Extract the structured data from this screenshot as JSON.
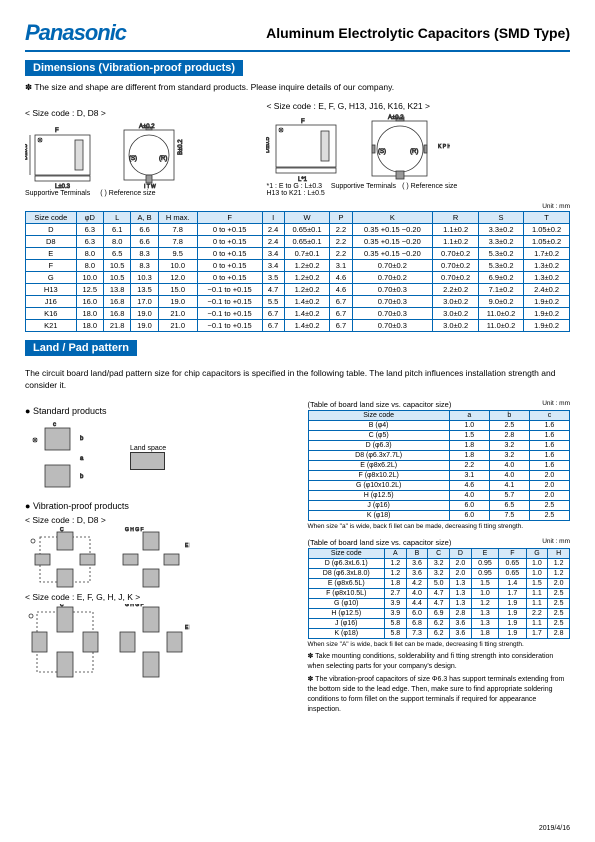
{
  "header": {
    "logo": "Panasonic",
    "title": "Aluminum Electrolytic Capacitors (SMD Type)"
  },
  "section1": {
    "title": "Dimensions (Vibration-proof products)",
    "note": "✽ The size and shape are different from standard products. Please inquire details of our company.",
    "diag_left_label": "< Size code : D, D8 >",
    "diag_right_label": "< Size code : E, F, G, H13, J16, K16, K21 >",
    "support_terminals": "Supportive Terminals",
    "ref_size": "( ) Reference size",
    "star1": "*1 : E to G : L±0.3\nH13 to K21 : L±0.5",
    "unit": "Unit : mm",
    "table": {
      "headers": [
        "Size code",
        "φD",
        "L",
        "A, B",
        "H max.",
        "F",
        "I",
        "W",
        "P",
        "K",
        "R",
        "S",
        "T"
      ],
      "rows": [
        [
          "D",
          "6.3",
          "6.1",
          "6.6",
          "7.8",
          "0 to +0.15",
          "2.4",
          "0.65±0.1",
          "2.2",
          "0.35 +0.15 −0.20",
          "1.1±0.2",
          "3.3±0.2",
          "1.05±0.2"
        ],
        [
          "D8",
          "6.3",
          "8.0",
          "6.6",
          "7.8",
          "0 to +0.15",
          "2.4",
          "0.65±0.1",
          "2.2",
          "0.35 +0.15 −0.20",
          "1.1±0.2",
          "3.3±0.2",
          "1.05±0.2"
        ],
        [
          "E",
          "8.0",
          "6.5",
          "8.3",
          "9.5",
          "0 to +0.15",
          "3.4",
          "0.7±0.1",
          "2.2",
          "0.35 +0.15 −0.20",
          "0.70±0.2",
          "5.3±0.2",
          "1.7±0.2"
        ],
        [
          "F",
          "8.0",
          "10.5",
          "8.3",
          "10.0",
          "0 to +0.15",
          "3.4",
          "1.2±0.2",
          "3.1",
          "0.70±0.2",
          "0.70±0.2",
          "5.3±0.2",
          "1.3±0.2"
        ],
        [
          "G",
          "10.0",
          "10.5",
          "10.3",
          "12.0",
          "0 to +0.15",
          "3.5",
          "1.2±0.2",
          "4.6",
          "0.70±0.2",
          "0.70±0.2",
          "6.9±0.2",
          "1.3±0.2"
        ],
        [
          "H13",
          "12.5",
          "13.8",
          "13.5",
          "15.0",
          "−0.1 to +0.15",
          "4.7",
          "1.2±0.2",
          "4.6",
          "0.70±0.3",
          "2.2±0.2",
          "7.1±0.2",
          "2.4±0.2"
        ],
        [
          "J16",
          "16.0",
          "16.8",
          "17.0",
          "19.0",
          "−0.1 to +0.15",
          "5.5",
          "1.4±0.2",
          "6.7",
          "0.70±0.3",
          "3.0±0.2",
          "9.0±0.2",
          "1.9±0.2"
        ],
        [
          "K16",
          "18.0",
          "16.8",
          "19.0",
          "21.0",
          "−0.1 to +0.15",
          "6.7",
          "1.4±0.2",
          "6.7",
          "0.70±0.3",
          "3.0±0.2",
          "11.0±0.2",
          "1.9±0.2"
        ],
        [
          "K21",
          "18.0",
          "21.8",
          "19.0",
          "21.0",
          "−0.1 to +0.15",
          "6.7",
          "1.4±0.2",
          "6.7",
          "0.70±0.3",
          "3.0±0.2",
          "11.0±0.2",
          "1.9±0.2"
        ]
      ]
    }
  },
  "section2": {
    "title": "Land / Pad pattern",
    "intro": "The circuit board land/pad pattern size for chip capacitors is specified in the following table. The land pitch influences installation strength and consider it.",
    "std_products": "Standard products",
    "vib_products": "Vibration-proof products",
    "land_space": "Land space",
    "size_dd8": "< Size code : D, D8 >",
    "size_efghjk": "< Size code : E, F, G, H, J, K >",
    "tbl1": {
      "caption": "(Table of board land size vs. capacitor size)",
      "unit": "Unit : mm",
      "headers": [
        "Size code",
        "a",
        "b",
        "c"
      ],
      "rows": [
        [
          "B (φ4)",
          "1.0",
          "2.5",
          "1.6"
        ],
        [
          "C (φ5)",
          "1.5",
          "2.8",
          "1.6"
        ],
        [
          "D (φ6.3)",
          "1.8",
          "3.2",
          "1.6"
        ],
        [
          "D8 (φ6.3x7.7L)",
          "1.8",
          "3.2",
          "1.6"
        ],
        [
          "E (φ8x6.2L)",
          "2.2",
          "4.0",
          "1.6"
        ],
        [
          "F (φ8x10.2L)",
          "3.1",
          "4.0",
          "2.0"
        ],
        [
          "G (φ10x10.2L)",
          "4.6",
          "4.1",
          "2.0"
        ],
        [
          "H (φ12.5)",
          "4.0",
          "5.7",
          "2.0"
        ],
        [
          "J (φ16)",
          "6.0",
          "6.5",
          "2.5"
        ],
        [
          "K (φ18)",
          "6.0",
          "7.5",
          "2.5"
        ]
      ],
      "foot": "When size \"a\" is wide, back fi llet can be made, decreasing fi tting strength."
    },
    "tbl2": {
      "caption": "(Table of board land size vs. capacitor size)",
      "unit": "Unit : mm",
      "headers": [
        "Size code",
        "A",
        "B",
        "C",
        "D",
        "E",
        "F",
        "G",
        "H"
      ],
      "rows": [
        [
          "D (φ6.3xL6.1)",
          "1.2",
          "3.6",
          "3.2",
          "2.0",
          "0.95",
          "0.65",
          "1.0",
          "1.2"
        ],
        [
          "D8 (φ6.3xL8.0)",
          "1.2",
          "3.6",
          "3.2",
          "2.0",
          "0.95",
          "0.65",
          "1.0",
          "1.2"
        ],
        [
          "E (φ8x6.5L)",
          "1.8",
          "4.2",
          "5.0",
          "1.3",
          "1.5",
          "1.4",
          "1.5",
          "2.0"
        ],
        [
          "F (φ8x10.5L)",
          "2.7",
          "4.0",
          "4.7",
          "1.3",
          "1.0",
          "1.7",
          "1.1",
          "2.5"
        ],
        [
          "G (φ10)",
          "3.9",
          "4.4",
          "4.7",
          "1.3",
          "1.2",
          "1.9",
          "1.1",
          "2.5"
        ],
        [
          "H (φ12.5)",
          "3.9",
          "6.0",
          "6.9",
          "2.8",
          "1.3",
          "1.9",
          "2.2",
          "2.5"
        ],
        [
          "J (φ16)",
          "5.8",
          "6.8",
          "6.2",
          "3.6",
          "1.3",
          "1.9",
          "1.1",
          "2.5"
        ],
        [
          "K (φ18)",
          "5.8",
          "7.3",
          "6.2",
          "3.6",
          "1.8",
          "1.9",
          "1.7",
          "2.8"
        ]
      ],
      "foot": "When size \"A\" is wide, back fi llet can be made, decreasing fi tting strength."
    },
    "star_notes": [
      "✽ Take mounting conditions, solderability and fi tting strength into consideration when selecting parts for your company's design.",
      "✽ The vibration-proof capacitors of size Φ6.3 has support terminals extending from the bottom side to the lead edge. Then, make sure to find appropriate soldering conditions to form fillet on the support terminals if required for appearance inspection."
    ]
  },
  "date": "2019/4/16",
  "colors": {
    "brand": "#0066b3",
    "th_bg": "#d6e9f8"
  }
}
